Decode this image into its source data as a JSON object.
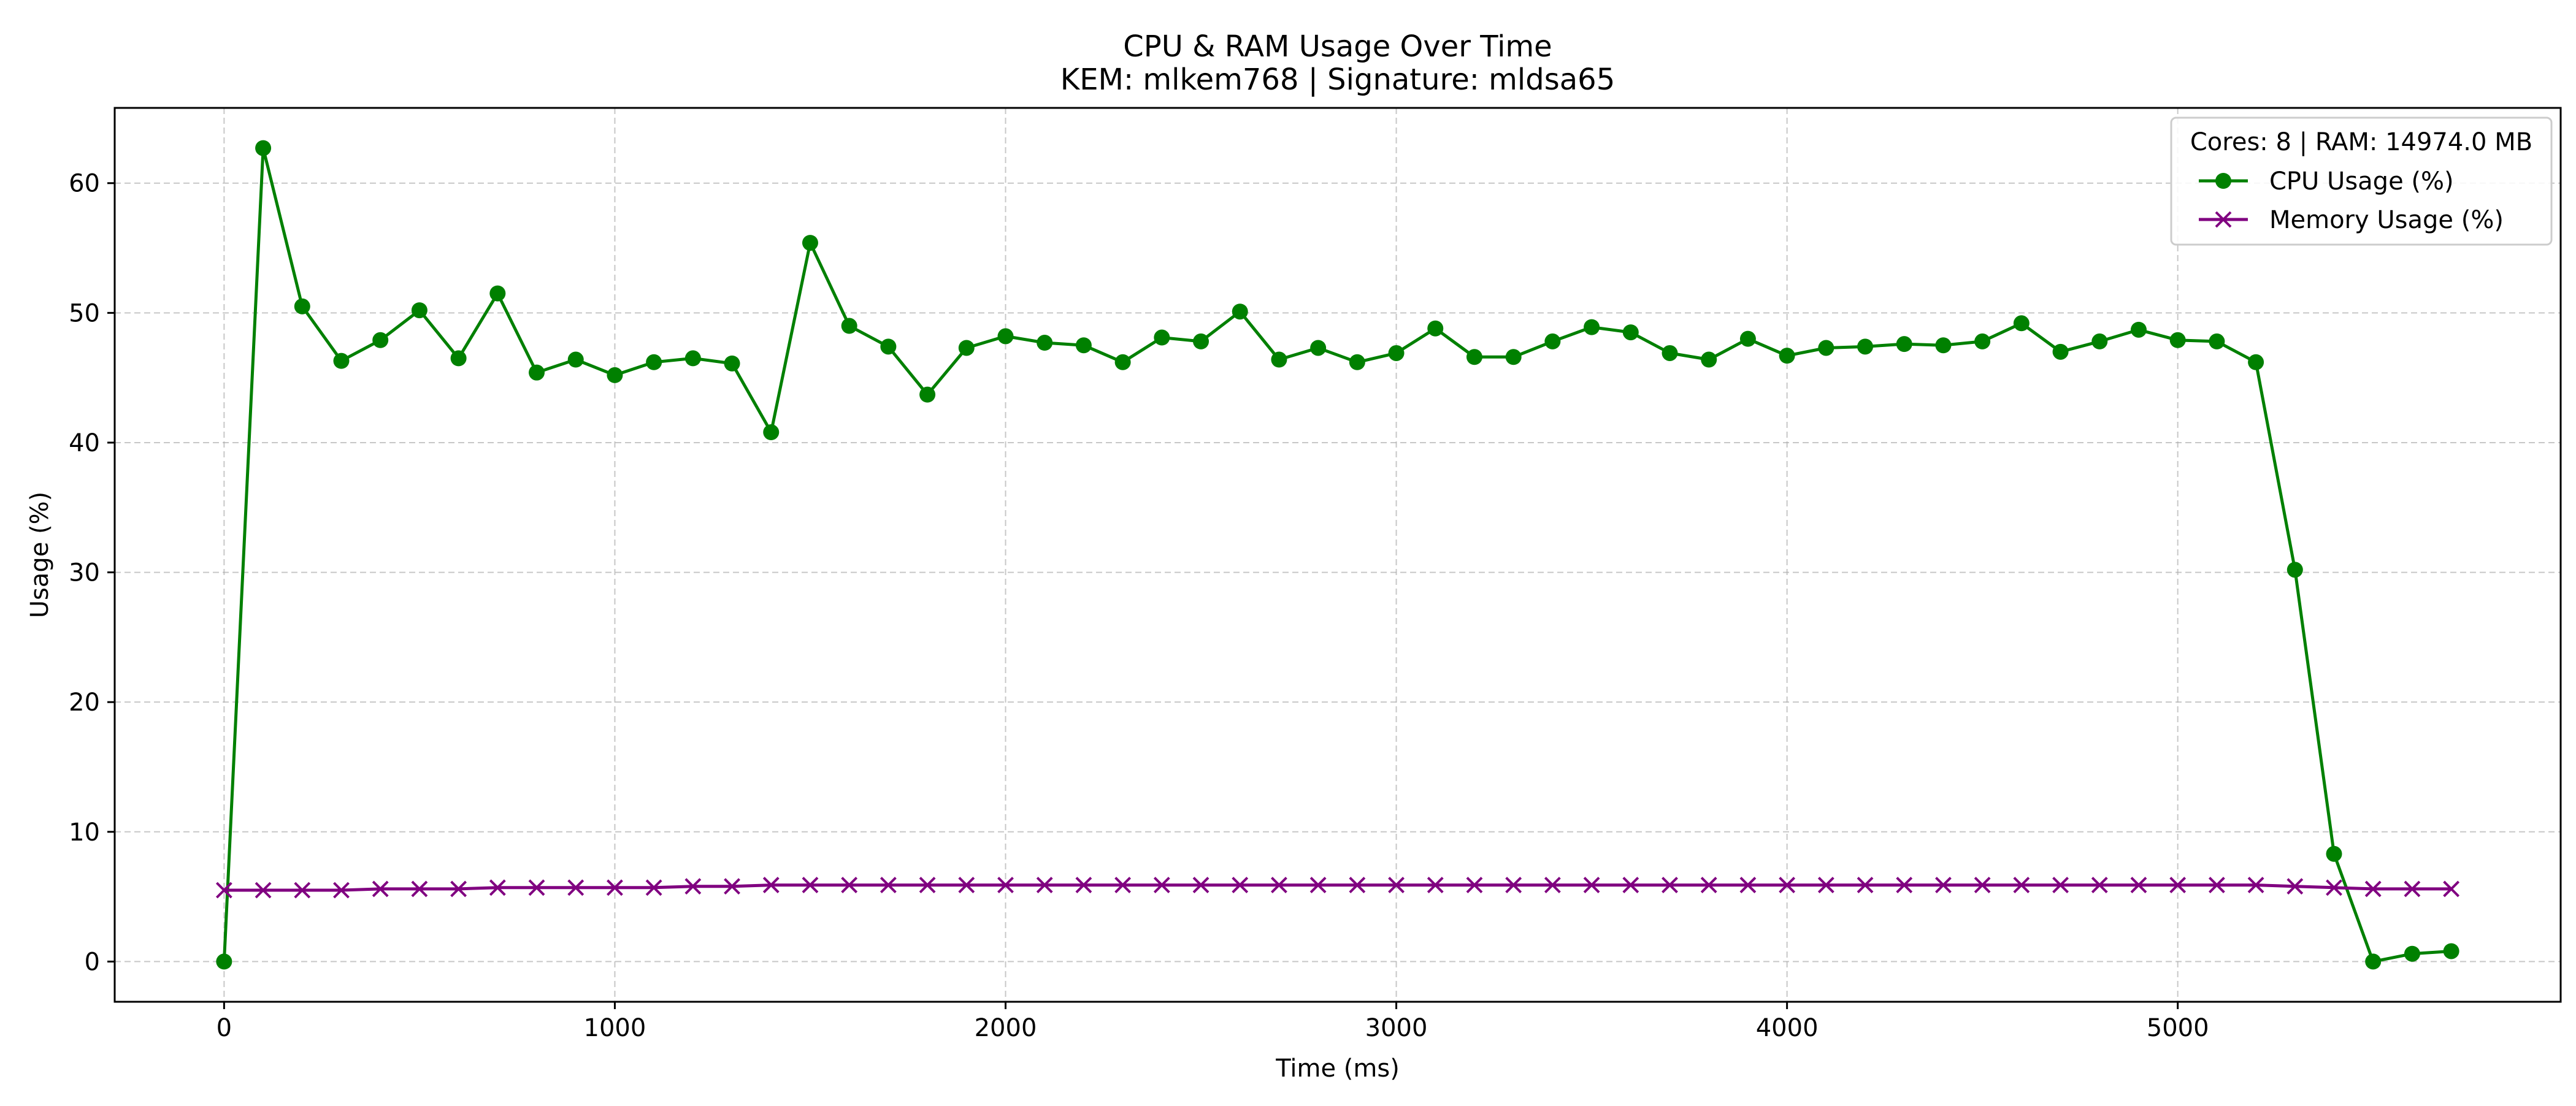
{
  "chart_data": {
    "type": "line",
    "title": "CPU & RAM Usage Over Time",
    "subtitle": "KEM: mlkem768 | Signature: mldsa65",
    "xlabel": "Time (ms)",
    "ylabel": "Usage (%)",
    "xlim": [
      -280,
      5980
    ],
    "ylim": [
      -3.1,
      65.8
    ],
    "xticks": [
      0,
      1000,
      2000,
      3000,
      4000,
      5000
    ],
    "yticks": [
      0,
      10,
      20,
      30,
      40,
      50,
      60
    ],
    "grid": true,
    "legend": {
      "title": "Cores: 8 | RAM: 14974.0 MB",
      "placement": "top-right"
    },
    "x": [
      0,
      100,
      200,
      300,
      400,
      500,
      600,
      700,
      800,
      900,
      1000,
      1100,
      1200,
      1300,
      1400,
      1500,
      1600,
      1700,
      1800,
      1900,
      2000,
      2100,
      2200,
      2300,
      2400,
      2500,
      2600,
      2700,
      2800,
      2900,
      3000,
      3100,
      3200,
      3300,
      3400,
      3500,
      3600,
      3700,
      3800,
      3900,
      4000,
      4100,
      4200,
      4300,
      4400,
      4500,
      4600,
      4700,
      4800,
      4900,
      5000,
      5100,
      5200,
      5300,
      5400,
      5500,
      5600,
      5700
    ],
    "series": [
      {
        "name": "CPU Usage (%)",
        "color": "#008000",
        "marker": "circle",
        "values": [
          0,
          62.7,
          50.5,
          46.3,
          47.9,
          50.2,
          46.5,
          51.5,
          45.4,
          46.4,
          45.2,
          46.2,
          46.5,
          46.1,
          40.8,
          55.4,
          49.0,
          47.4,
          43.7,
          47.3,
          48.2,
          47.7,
          47.5,
          46.2,
          48.1,
          47.8,
          50.1,
          46.4,
          47.3,
          46.2,
          46.9,
          48.8,
          46.6,
          46.6,
          47.8,
          48.9,
          48.5,
          46.9,
          46.4,
          48.0,
          46.7,
          47.3,
          47.4,
          47.6,
          47.5,
          47.8,
          49.2,
          47.0,
          47.8,
          48.7,
          47.9,
          47.8,
          46.2,
          30.2,
          8.3,
          0.0,
          0.6,
          0.8
        ]
      },
      {
        "name": "Memory Usage (%)",
        "color": "#800080",
        "marker": "x",
        "values": [
          5.5,
          5.5,
          5.5,
          5.5,
          5.6,
          5.6,
          5.6,
          5.7,
          5.7,
          5.7,
          5.7,
          5.7,
          5.8,
          5.8,
          5.9,
          5.9,
          5.9,
          5.9,
          5.9,
          5.9,
          5.9,
          5.9,
          5.9,
          5.9,
          5.9,
          5.9,
          5.9,
          5.9,
          5.9,
          5.9,
          5.9,
          5.9,
          5.9,
          5.9,
          5.9,
          5.9,
          5.9,
          5.9,
          5.9,
          5.9,
          5.9,
          5.9,
          5.9,
          5.9,
          5.9,
          5.9,
          5.9,
          5.9,
          5.9,
          5.9,
          5.9,
          5.9,
          5.9,
          5.8,
          5.7,
          5.6,
          5.6,
          5.6
        ]
      }
    ]
  }
}
